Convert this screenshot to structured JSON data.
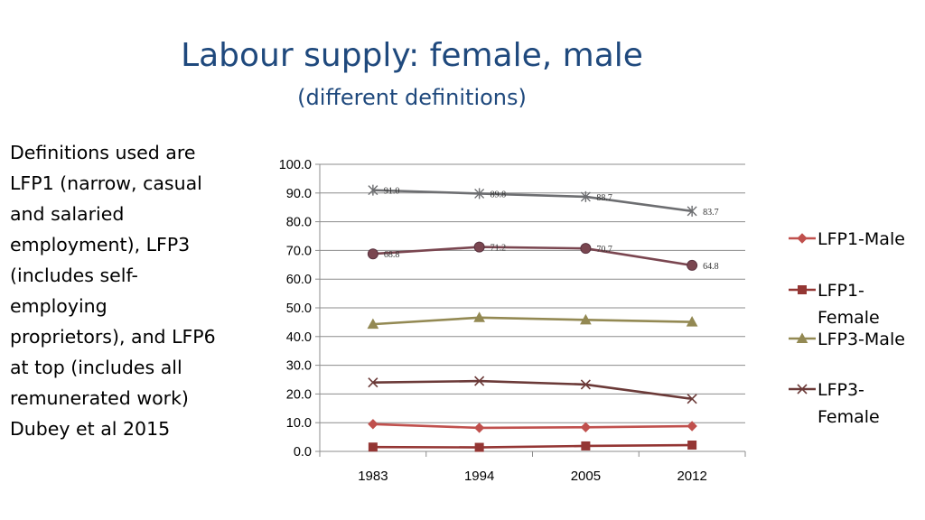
{
  "slide": {
    "title": "Labour supply: female, male",
    "subtitle": "(different definitions)",
    "body_text": "Definitions used are LFP1 (narrow, casual and salaried employment), LFP3 (includes self-employing proprietors), and LFP6 at top (includes all remunerated work) Dubey et al 2015"
  },
  "chart_data": {
    "type": "line",
    "title": "",
    "xlabel": "",
    "ylabel": "",
    "categories": [
      "1983",
      "1994",
      "2005",
      "2012"
    ],
    "ylim": [
      0,
      100
    ],
    "y_ticks": [
      "0.0",
      "10.0",
      "20.0",
      "30.0",
      "40.0",
      "50.0",
      "60.0",
      "70.0",
      "80.0",
      "90.0",
      "100.0"
    ],
    "grid": true,
    "legend_position": "right",
    "series": [
      {
        "name": "LFP1-Male",
        "values": [
          9.5,
          8.2,
          8.4,
          8.8
        ],
        "color": "#c0504d",
        "marker": "diamond",
        "data_labels": []
      },
      {
        "name": "LFP1-Female",
        "values": [
          1.5,
          1.4,
          1.9,
          2.2
        ],
        "color": "#943634",
        "marker": "square",
        "data_labels": []
      },
      {
        "name": "LFP3-Male",
        "values": [
          44.3,
          46.6,
          45.8,
          45.1
        ],
        "color": "#938953",
        "marker": "triangle",
        "data_labels": []
      },
      {
        "name": "LFP3-Female",
        "values": [
          24.0,
          24.5,
          23.3,
          18.3
        ],
        "color": "#6b3a38",
        "marker": "x",
        "data_labels": []
      },
      {
        "name": "",
        "values": [
          68.8,
          71.2,
          70.7,
          64.8
        ],
        "color": "#7a4650",
        "marker": "circle",
        "data_labels": [
          "68.8",
          "71.2",
          "70.7",
          "64.8"
        ]
      },
      {
        "name": "",
        "values": [
          91.0,
          89.8,
          88.7,
          83.7
        ],
        "color": "#6d6e71",
        "marker": "star",
        "data_labels": [
          "91.0",
          "89.8",
          "88.7",
          "83.7"
        ]
      }
    ],
    "legend": [
      {
        "label": "LFP1-Male",
        "color": "#c0504d",
        "marker": "diamond"
      },
      {
        "label": "LFP1-Female",
        "color": "#943634",
        "marker": "square"
      },
      {
        "label": "LFP3-Male",
        "color": "#938953",
        "marker": "triangle"
      },
      {
        "label": "LFP3-Female",
        "color": "#6b3a38",
        "marker": "x"
      }
    ]
  }
}
